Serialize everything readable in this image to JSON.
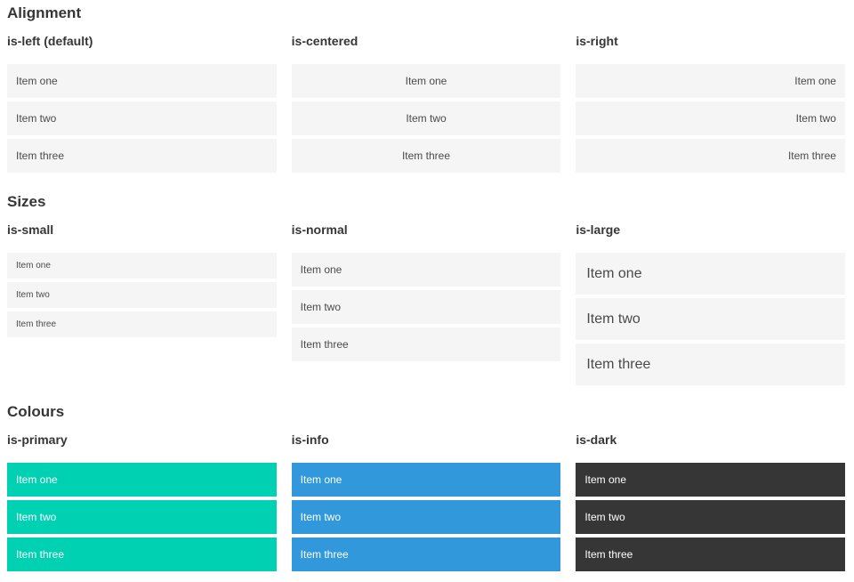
{
  "colors": {
    "page_bg": "#ffffff",
    "item_bg": "#f5f5f5",
    "item_text": "#4a4a4a",
    "heading_text": "#363636",
    "primary": "#00d1b2",
    "info": "#3298dc",
    "dark": "#363636",
    "colored_item_text": "#ffffff"
  },
  "sections": [
    {
      "title": "Alignment",
      "columns": [
        {
          "label": "is-left (default)",
          "items": [
            "Item one",
            "Item two",
            "Item three"
          ]
        },
        {
          "label": "is-centered",
          "items": [
            "Item one",
            "Item two",
            "Item three"
          ]
        },
        {
          "label": "is-right",
          "items": [
            "Item one",
            "Item two",
            "Item three"
          ]
        }
      ]
    },
    {
      "title": "Sizes",
      "columns": [
        {
          "label": "is-small",
          "items": [
            "Item one",
            "Item two",
            "Item three"
          ]
        },
        {
          "label": "is-normal",
          "items": [
            "Item one",
            "Item two",
            "Item three"
          ]
        },
        {
          "label": "is-large",
          "items": [
            "Item one",
            "Item two",
            "Item three"
          ]
        }
      ]
    },
    {
      "title": "Colours",
      "columns": [
        {
          "label": "is-primary",
          "items": [
            "Item one",
            "Item two",
            "Item three"
          ]
        },
        {
          "label": "is-info",
          "items": [
            "Item one",
            "Item two",
            "Item three"
          ]
        },
        {
          "label": "is-dark",
          "items": [
            "Item one",
            "Item two",
            "Item three"
          ]
        }
      ]
    }
  ]
}
